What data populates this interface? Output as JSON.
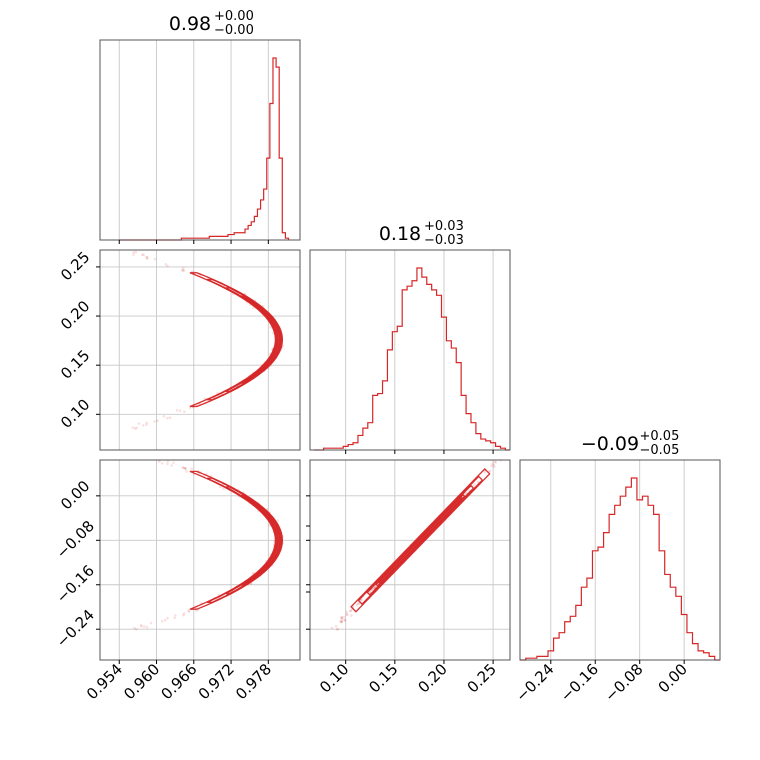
{
  "chart_data": {
    "type": "corner",
    "color": "#d62728",
    "grid": true,
    "params": [
      {
        "title_main": "0.98",
        "title_upper": "+0.00",
        "title_lower": "−0.00",
        "ticks": [
          0.954,
          0.96,
          0.966,
          0.972,
          0.978
        ],
        "tick_labels": [
          "0.954",
          "0.960",
          "0.966",
          "0.972",
          "0.978"
        ],
        "range": [
          0.9509,
          0.9831
        ]
      },
      {
        "title_main": "0.18",
        "title_upper": "+0.03",
        "title_lower": "−0.03",
        "ticks": [
          0.1,
          0.15,
          0.2,
          0.25
        ],
        "tick_labels": [
          "0.10",
          "0.15",
          "0.20",
          "0.25"
        ],
        "range": [
          0.0637,
          0.2672
        ]
      },
      {
        "title_main": "−0.09",
        "title_upper": "+0.05",
        "title_lower": "−0.05",
        "ticks": [
          -0.24,
          -0.16,
          -0.08,
          0.0
        ],
        "tick_labels": [
          "−0.24",
          "−0.16",
          "−0.08",
          "0.00"
        ],
        "range": [
          -0.2954,
          0.0645
        ]
      }
    ],
    "histograms": [
      {
        "param": 0,
        "x": [
          0.955,
          0.957,
          0.959,
          0.961,
          0.963,
          0.965,
          0.966,
          0.967,
          0.968,
          0.969,
          0.97,
          0.971,
          0.972,
          0.973,
          0.974,
          0.9745,
          0.975,
          0.9755,
          0.976,
          0.9765,
          0.977,
          0.9775,
          0.978,
          0.9785,
          0.979,
          0.9795,
          0.98,
          0.9805,
          0.981
        ],
        "values": [
          0,
          0,
          0,
          0,
          0,
          1,
          1,
          1,
          1,
          2,
          2,
          2,
          3,
          4,
          4,
          6,
          8,
          10,
          13,
          17,
          22,
          28,
          45,
          75,
          100,
          95,
          45,
          4,
          1
        ]
      },
      {
        "param": 1,
        "x": [
          0.07,
          0.075,
          0.08,
          0.085,
          0.09,
          0.095,
          0.1,
          0.105,
          0.11,
          0.115,
          0.12,
          0.125,
          0.13,
          0.135,
          0.14,
          0.145,
          0.15,
          0.155,
          0.16,
          0.165,
          0.17,
          0.175,
          0.18,
          0.185,
          0.19,
          0.195,
          0.2,
          0.205,
          0.21,
          0.215,
          0.22,
          0.225,
          0.23,
          0.235,
          0.24,
          0.245,
          0.25,
          0.255,
          0.26,
          0.265
        ],
        "values": [
          0,
          0,
          1,
          1,
          1,
          1,
          2,
          3,
          4,
          8,
          12,
          15,
          30,
          31,
          38,
          55,
          65,
          68,
          88,
          90,
          93,
          100,
          95,
          91,
          88,
          85,
          73,
          60,
          56,
          48,
          30,
          20,
          15,
          9,
          6,
          5,
          4,
          2,
          1,
          0
        ]
      },
      {
        "param": 2,
        "x": [
          -0.29,
          -0.28,
          -0.27,
          -0.26,
          -0.25,
          -0.24,
          -0.23,
          -0.22,
          -0.21,
          -0.2,
          -0.19,
          -0.18,
          -0.17,
          -0.16,
          -0.15,
          -0.14,
          -0.13,
          -0.12,
          -0.11,
          -0.1,
          -0.09,
          -0.08,
          -0.07,
          -0.06,
          -0.05,
          -0.04,
          -0.03,
          -0.02,
          -0.01,
          0.0,
          0.01,
          0.02,
          0.03,
          0.04,
          0.05,
          0.06
        ],
        "values": [
          0,
          1,
          1,
          2,
          2,
          5,
          12,
          15,
          21,
          24,
          30,
          40,
          45,
          60,
          62,
          70,
          80,
          85,
          90,
          95,
          100,
          88,
          90,
          85,
          80,
          60,
          47,
          40,
          35,
          25,
          15,
          9,
          5,
          4,
          2,
          0
        ]
      }
    ],
    "curve_samples": {
      "t": [
        -1.0,
        -0.75,
        -0.5,
        -0.25,
        0.0,
        0.25,
        0.5,
        0.75,
        1.0
      ]
    },
    "panels": [
      "hist(0)",
      "hist(1)",
      "hist(2)",
      "scatter(0,1)",
      "scatter(0,2)",
      "scatter(1,2)"
    ]
  }
}
